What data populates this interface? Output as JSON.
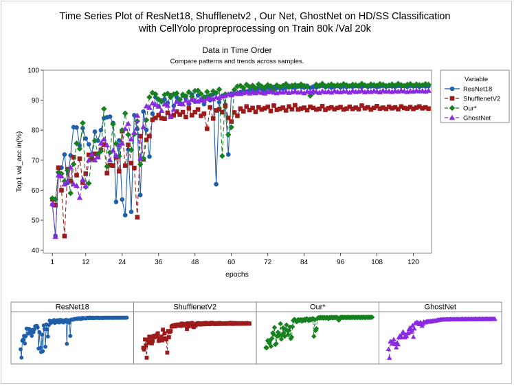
{
  "chart_data": {
    "type": "line",
    "title": "Time Series Plot of ResNet18, Shufflenetv2 , Our Net, GhostNet on HD/SS Classification",
    "title2": "with CellYolo propreprocessing on Train 80k /Val 20k",
    "subtitle": "Data in Time Order",
    "subtitle2": "Compare patterns and trends across samples.",
    "xlabel": "epochs",
    "ylabel": "Top1 val_acc in(%)",
    "xlim": [
      -2,
      126
    ],
    "ylim": [
      39,
      100
    ],
    "xticks": [
      1,
      12,
      24,
      36,
      48,
      60,
      72,
      84,
      96,
      108,
      120
    ],
    "yticks": [
      40,
      50,
      60,
      70,
      80,
      90,
      100
    ],
    "grid": false,
    "legend_title": "Variable",
    "legend_position": "right",
    "series": [
      {
        "name": "ResNet18",
        "color": "#1f5ea8",
        "marker": "circle",
        "dash": "",
        "values": [
          55.2,
          44.8,
          65.9,
          67.5,
          71.9,
          62.4,
          71.6,
          81.0,
          80.9,
          74.9,
          80.7,
          77.2,
          75.3,
          72.0,
          79.5,
          76.5,
          80.0,
          84.0,
          84.3,
          84.5,
          82.4,
          56.1,
          76.6,
          56.9,
          51.7,
          73.5,
          52.8,
          85.0,
          80.4,
          58.4,
          86.2,
          80.1,
          71.2,
          85.5,
          91.0,
          87.9,
          89.9,
          90.3,
          89.1,
          91.7,
          88.1,
          91.0,
          89.2,
          91.5,
          90.6,
          88.7,
          91.9,
          89.5,
          91.6,
          90.0,
          88.7,
          91.2,
          90.0,
          92.0,
          62.0,
          89.3,
          91.5,
          88.5,
          71.9,
          92.2,
          92.4,
          92.1,
          92.7,
          93.1,
          92.9,
          93.3,
          93.5,
          93.2,
          94.0,
          93.7,
          93.1,
          94.2,
          93.5,
          94.4,
          94.1,
          94.0,
          93.8,
          94.2,
          94.7,
          94.3,
          94.1,
          94.9,
          94.4,
          94.2,
          94.8,
          94.1,
          94.5,
          94.3,
          94.6,
          94.8,
          94.4,
          94.6,
          94.2,
          94.5,
          94.7,
          94.3,
          94.6,
          94.4,
          94.8,
          94.5,
          94.7,
          94.6,
          94.4,
          94.8,
          94.5,
          94.6,
          94.7,
          94.4,
          94.6,
          94.8,
          94.5,
          94.7,
          94.6,
          94.5,
          94.8,
          94.6,
          94.7,
          94.5,
          94.8,
          94.6,
          94.7,
          94.5,
          94.8,
          94.6,
          94.7
        ]
      },
      {
        "name": "ShufflenetV2",
        "color": "#9c1a1a",
        "marker": "square",
        "dash": "6,4",
        "values": [
          57.0,
          55.0,
          67.5,
          60.0,
          44.7,
          67.0,
          63.0,
          71.0,
          65.0,
          70.5,
          62.5,
          65.5,
          71.8,
          70.4,
          72.1,
          71.1,
          73.4,
          75.2,
          65.7,
          68.3,
          68.2,
          71.0,
          66.3,
          79.7,
          68.2,
          75.1,
          69.0,
          67.4,
          51.0,
          78.0,
          70.3,
          76.8,
          78.0,
          83.5,
          84.1,
          85.0,
          84.0,
          83.8,
          85.8,
          84.5,
          85.0,
          86.2,
          85.2,
          86.0,
          84.4,
          87.3,
          85.0,
          86.0,
          86.9,
          84.8,
          85.5,
          80.5,
          87.6,
          83.9,
          86.6,
          87.0,
          86.0,
          88.1,
          84.1,
          82.9,
          85.9,
          84.8,
          87.2,
          86.3,
          87.9,
          86.7,
          87.4,
          86.1,
          87.6,
          86.9,
          87.3,
          87.8,
          86.4,
          88.2,
          86.8,
          87.1,
          87.5,
          86.6,
          87.9,
          87.0,
          88.3,
          86.9,
          87.2,
          87.5,
          86.7,
          87.8,
          87.4,
          86.9,
          87.1,
          88.0,
          86.8,
          87.3,
          87.6,
          87.0,
          87.4,
          87.7,
          86.9,
          87.2,
          87.8,
          87.1,
          87.5,
          87.0,
          88.2,
          87.3,
          87.6,
          86.9,
          87.4,
          88.0,
          87.2,
          87.5,
          87.1,
          87.8,
          87.3,
          87.6,
          87.0,
          87.9,
          87.4,
          87.2,
          87.7,
          87.1,
          87.5,
          87.9,
          87.3,
          87.6,
          87.2
        ]
      },
      {
        "name": "Our*",
        "color": "#17801f",
        "marker": "diamond",
        "dash": "6,4",
        "values": [
          57.3,
          57.0,
          66.0,
          65.5,
          63.0,
          66.6,
          59.0,
          68.7,
          75.6,
          73.8,
          82.4,
          61.1,
          62.3,
          71.5,
          76.5,
          72.0,
          73.0,
          87.1,
          67.9,
          72.6,
          82.0,
          75.5,
          71.3,
          80.0,
          85.6,
          78.5,
          73.4,
          78.7,
          83.0,
          68.6,
          70.6,
          83.4,
          91.0,
          92.5,
          92.0,
          90.3,
          89.5,
          91.8,
          92.2,
          91.0,
          92.0,
          92.3,
          90.2,
          91.9,
          91.4,
          92.7,
          91.2,
          93.1,
          93.2,
          92.1,
          91.0,
          92.8,
          91.6,
          93.0,
          92.4,
          93.6,
          71.4,
          92.0,
          78.5,
          81.0,
          93.5,
          94.6,
          94.8,
          94.1,
          95.2,
          94.4,
          94.9,
          94.0,
          95.3,
          94.6,
          94.2,
          95.1,
          94.7,
          93.3,
          95.0,
          94.5,
          94.8,
          95.4,
          94.3,
          94.9,
          95.1,
          94.6,
          95.3,
          94.8,
          94.5,
          91.5,
          92.5,
          95.2,
          94.9,
          95.5,
          94.7,
          95.0,
          95.3,
          94.8,
          95.1,
          94.9,
          95.4,
          95.0,
          94.7,
          95.2,
          95.1,
          94.9,
          95.5,
          95.0,
          94.8,
          95.3,
          95.1,
          94.9,
          95.4,
          95.2,
          94.8,
          95.0,
          95.3,
          94.9,
          95.5,
          95.1,
          94.8,
          95.2,
          95.4,
          94.9,
          95.3,
          95.1,
          95.0,
          95.4,
          95.2
        ]
      },
      {
        "name": "GhostNet",
        "color": "#8a2be2",
        "marker": "triangle",
        "dash": "6,4",
        "values": [
          55.5,
          44.5,
          65.0,
          64.7,
          62.0,
          63.0,
          67.6,
          62.0,
          61.5,
          57.5,
          63.6,
          61.4,
          70.0,
          72.0,
          70.0,
          71.0,
          75.6,
          77.0,
          75.0,
          70.0,
          73.3,
          71.6,
          75.0,
          75.6,
          80.5,
          82.2,
          77.0,
          79.2,
          84.9,
          70.6,
          81.1,
          88.0,
          87.5,
          89.0,
          88.5,
          87.9,
          86.5,
          88.7,
          88.2,
          84.5,
          86.9,
          89.5,
          88.8,
          88.7,
          89.9,
          89.4,
          90.2,
          90.0,
          89.6,
          90.4,
          89.9,
          90.5,
          90.7,
          90.4,
          91.0,
          90.8,
          91.3,
          91.5,
          92.0,
          91.7,
          92.2,
          92.5,
          92.1,
          92.4,
          92.7,
          92.3,
          92.6,
          92.4,
          92.8,
          92.5,
          92.3,
          92.7,
          92.9,
          92.6,
          92.4,
          92.8,
          92.6,
          92.9,
          92.5,
          92.7,
          93.0,
          92.6,
          92.8,
          92.4,
          92.9,
          92.7,
          93.1,
          92.8,
          92.5,
          93.0,
          92.7,
          92.9,
          92.6,
          93.1,
          92.8,
          92.7,
          93.0,
          92.9,
          92.6,
          93.1,
          92.8,
          92.9,
          93.2,
          92.7,
          93.0,
          92.8,
          93.1,
          92.9,
          92.7,
          93.2,
          92.9,
          93.0,
          92.8,
          93.1,
          92.9,
          93.2,
          93.0,
          92.8,
          93.1,
          92.9,
          93.2,
          93.0,
          93.1,
          92.9,
          93.2
        ]
      }
    ]
  }
}
